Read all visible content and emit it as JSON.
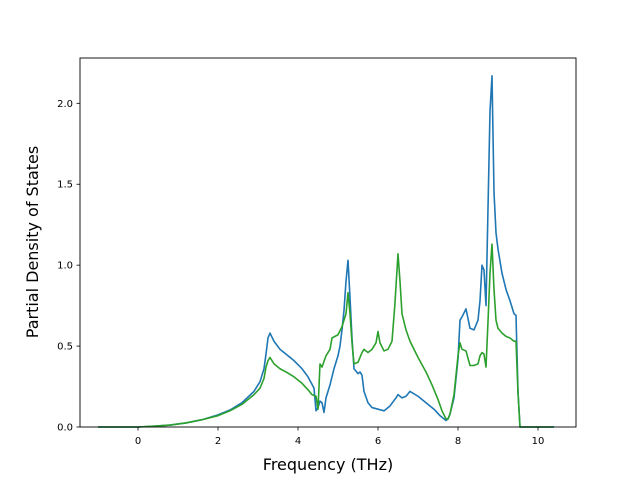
{
  "chart_data": {
    "type": "line",
    "title": "",
    "xlabel": "Frequency (THz)",
    "ylabel": "Partial Density of States",
    "xlim": [
      -1.45,
      10.95
    ],
    "ylim": [
      0.0,
      2.28
    ],
    "x_ticks": [
      0,
      2,
      4,
      6,
      8,
      10
    ],
    "x_tick_labels": [
      "0",
      "2",
      "4",
      "6",
      "8",
      "10"
    ],
    "y_ticks": [
      0.0,
      0.5,
      1.0,
      1.5,
      2.0
    ],
    "y_tick_labels": [
      "0.0",
      "0.5",
      "1.0",
      "1.5",
      "2.0"
    ],
    "grid": false,
    "legend": "none",
    "series": [
      {
        "color": "#1f77b4",
        "points": [
          [
            -1.0,
            0.0
          ],
          [
            0.0,
            0.0
          ],
          [
            0.4,
            0.005
          ],
          [
            0.8,
            0.012
          ],
          [
            1.2,
            0.025
          ],
          [
            1.6,
            0.045
          ],
          [
            2.0,
            0.075
          ],
          [
            2.3,
            0.105
          ],
          [
            2.6,
            0.15
          ],
          [
            2.9,
            0.22
          ],
          [
            3.05,
            0.28
          ],
          [
            3.15,
            0.36
          ],
          [
            3.2,
            0.45
          ],
          [
            3.25,
            0.55
          ],
          [
            3.3,
            0.58
          ],
          [
            3.4,
            0.53
          ],
          [
            3.55,
            0.48
          ],
          [
            3.7,
            0.45
          ],
          [
            3.9,
            0.41
          ],
          [
            4.1,
            0.36
          ],
          [
            4.25,
            0.31
          ],
          [
            4.4,
            0.24
          ],
          [
            4.45,
            0.1
          ],
          [
            4.5,
            0.12
          ],
          [
            4.55,
            0.16
          ],
          [
            4.6,
            0.15
          ],
          [
            4.65,
            0.09
          ],
          [
            4.7,
            0.18
          ],
          [
            4.8,
            0.26
          ],
          [
            4.9,
            0.36
          ],
          [
            5.0,
            0.44
          ],
          [
            5.05,
            0.5
          ],
          [
            5.1,
            0.6
          ],
          [
            5.15,
            0.72
          ],
          [
            5.2,
            0.9
          ],
          [
            5.25,
            1.03
          ],
          [
            5.3,
            0.8
          ],
          [
            5.35,
            0.55
          ],
          [
            5.4,
            0.36
          ],
          [
            5.5,
            0.33
          ],
          [
            5.55,
            0.34
          ],
          [
            5.6,
            0.32
          ],
          [
            5.65,
            0.22
          ],
          [
            5.75,
            0.15
          ],
          [
            5.85,
            0.12
          ],
          [
            6.0,
            0.11
          ],
          [
            6.15,
            0.1
          ],
          [
            6.3,
            0.13
          ],
          [
            6.45,
            0.18
          ],
          [
            6.5,
            0.2
          ],
          [
            6.6,
            0.18
          ],
          [
            6.7,
            0.19
          ],
          [
            6.8,
            0.22
          ],
          [
            7.0,
            0.19
          ],
          [
            7.2,
            0.15
          ],
          [
            7.4,
            0.11
          ],
          [
            7.55,
            0.07
          ],
          [
            7.65,
            0.05
          ],
          [
            7.7,
            0.04
          ],
          [
            7.75,
            0.05
          ],
          [
            7.8,
            0.08
          ],
          [
            7.9,
            0.18
          ],
          [
            8.0,
            0.42
          ],
          [
            8.05,
            0.66
          ],
          [
            8.1,
            0.68
          ],
          [
            8.2,
            0.73
          ],
          [
            8.3,
            0.61
          ],
          [
            8.4,
            0.6
          ],
          [
            8.5,
            0.66
          ],
          [
            8.55,
            0.78
          ],
          [
            8.6,
            1.0
          ],
          [
            8.65,
            0.97
          ],
          [
            8.7,
            0.75
          ],
          [
            8.75,
            1.35
          ],
          [
            8.8,
            1.95
          ],
          [
            8.85,
            2.17
          ],
          [
            8.9,
            1.45
          ],
          [
            8.95,
            1.2
          ],
          [
            9.0,
            1.1
          ],
          [
            9.1,
            0.95
          ],
          [
            9.2,
            0.85
          ],
          [
            9.3,
            0.78
          ],
          [
            9.4,
            0.7
          ],
          [
            9.45,
            0.69
          ],
          [
            9.5,
            0.22
          ],
          [
            9.55,
            0.0
          ],
          [
            10.4,
            0.0
          ]
        ]
      },
      {
        "color": "#2ca02c",
        "points": [
          [
            -1.0,
            0.0
          ],
          [
            0.0,
            0.0
          ],
          [
            0.4,
            0.005
          ],
          [
            0.8,
            0.012
          ],
          [
            1.2,
            0.025
          ],
          [
            1.6,
            0.045
          ],
          [
            2.0,
            0.07
          ],
          [
            2.3,
            0.1
          ],
          [
            2.6,
            0.14
          ],
          [
            2.9,
            0.2
          ],
          [
            3.05,
            0.24
          ],
          [
            3.15,
            0.3
          ],
          [
            3.2,
            0.37
          ],
          [
            3.25,
            0.41
          ],
          [
            3.3,
            0.43
          ],
          [
            3.4,
            0.39
          ],
          [
            3.55,
            0.36
          ],
          [
            3.7,
            0.34
          ],
          [
            3.9,
            0.31
          ],
          [
            4.1,
            0.27
          ],
          [
            4.25,
            0.23
          ],
          [
            4.35,
            0.2
          ],
          [
            4.45,
            0.19
          ],
          [
            4.5,
            0.11
          ],
          [
            4.55,
            0.39
          ],
          [
            4.6,
            0.37
          ],
          [
            4.7,
            0.44
          ],
          [
            4.8,
            0.48
          ],
          [
            4.85,
            0.55
          ],
          [
            5.0,
            0.57
          ],
          [
            5.1,
            0.62
          ],
          [
            5.2,
            0.7
          ],
          [
            5.25,
            0.83
          ],
          [
            5.3,
            0.7
          ],
          [
            5.35,
            0.52
          ],
          [
            5.4,
            0.39
          ],
          [
            5.5,
            0.4
          ],
          [
            5.6,
            0.46
          ],
          [
            5.65,
            0.48
          ],
          [
            5.75,
            0.46
          ],
          [
            5.85,
            0.48
          ],
          [
            5.95,
            0.52
          ],
          [
            6.0,
            0.59
          ],
          [
            6.05,
            0.52
          ],
          [
            6.15,
            0.47
          ],
          [
            6.25,
            0.48
          ],
          [
            6.35,
            0.53
          ],
          [
            6.42,
            0.75
          ],
          [
            6.5,
            1.07
          ],
          [
            6.55,
            0.9
          ],
          [
            6.6,
            0.7
          ],
          [
            6.7,
            0.6
          ],
          [
            6.8,
            0.53
          ],
          [
            7.0,
            0.43
          ],
          [
            7.2,
            0.34
          ],
          [
            7.35,
            0.26
          ],
          [
            7.5,
            0.17
          ],
          [
            7.6,
            0.1
          ],
          [
            7.7,
            0.05
          ],
          [
            7.75,
            0.05
          ],
          [
            7.8,
            0.08
          ],
          [
            7.9,
            0.2
          ],
          [
            8.0,
            0.44
          ],
          [
            8.05,
            0.52
          ],
          [
            8.1,
            0.48
          ],
          [
            8.2,
            0.47
          ],
          [
            8.3,
            0.38
          ],
          [
            8.4,
            0.38
          ],
          [
            8.5,
            0.39
          ],
          [
            8.55,
            0.44
          ],
          [
            8.6,
            0.46
          ],
          [
            8.65,
            0.45
          ],
          [
            8.7,
            0.37
          ],
          [
            8.75,
            0.65
          ],
          [
            8.8,
            0.95
          ],
          [
            8.85,
            1.13
          ],
          [
            8.9,
            0.85
          ],
          [
            8.95,
            0.66
          ],
          [
            9.0,
            0.61
          ],
          [
            9.1,
            0.58
          ],
          [
            9.2,
            0.56
          ],
          [
            9.3,
            0.55
          ],
          [
            9.4,
            0.53
          ],
          [
            9.45,
            0.53
          ],
          [
            9.5,
            0.21
          ],
          [
            9.55,
            0.0
          ],
          [
            10.4,
            0.0
          ]
        ]
      }
    ]
  }
}
